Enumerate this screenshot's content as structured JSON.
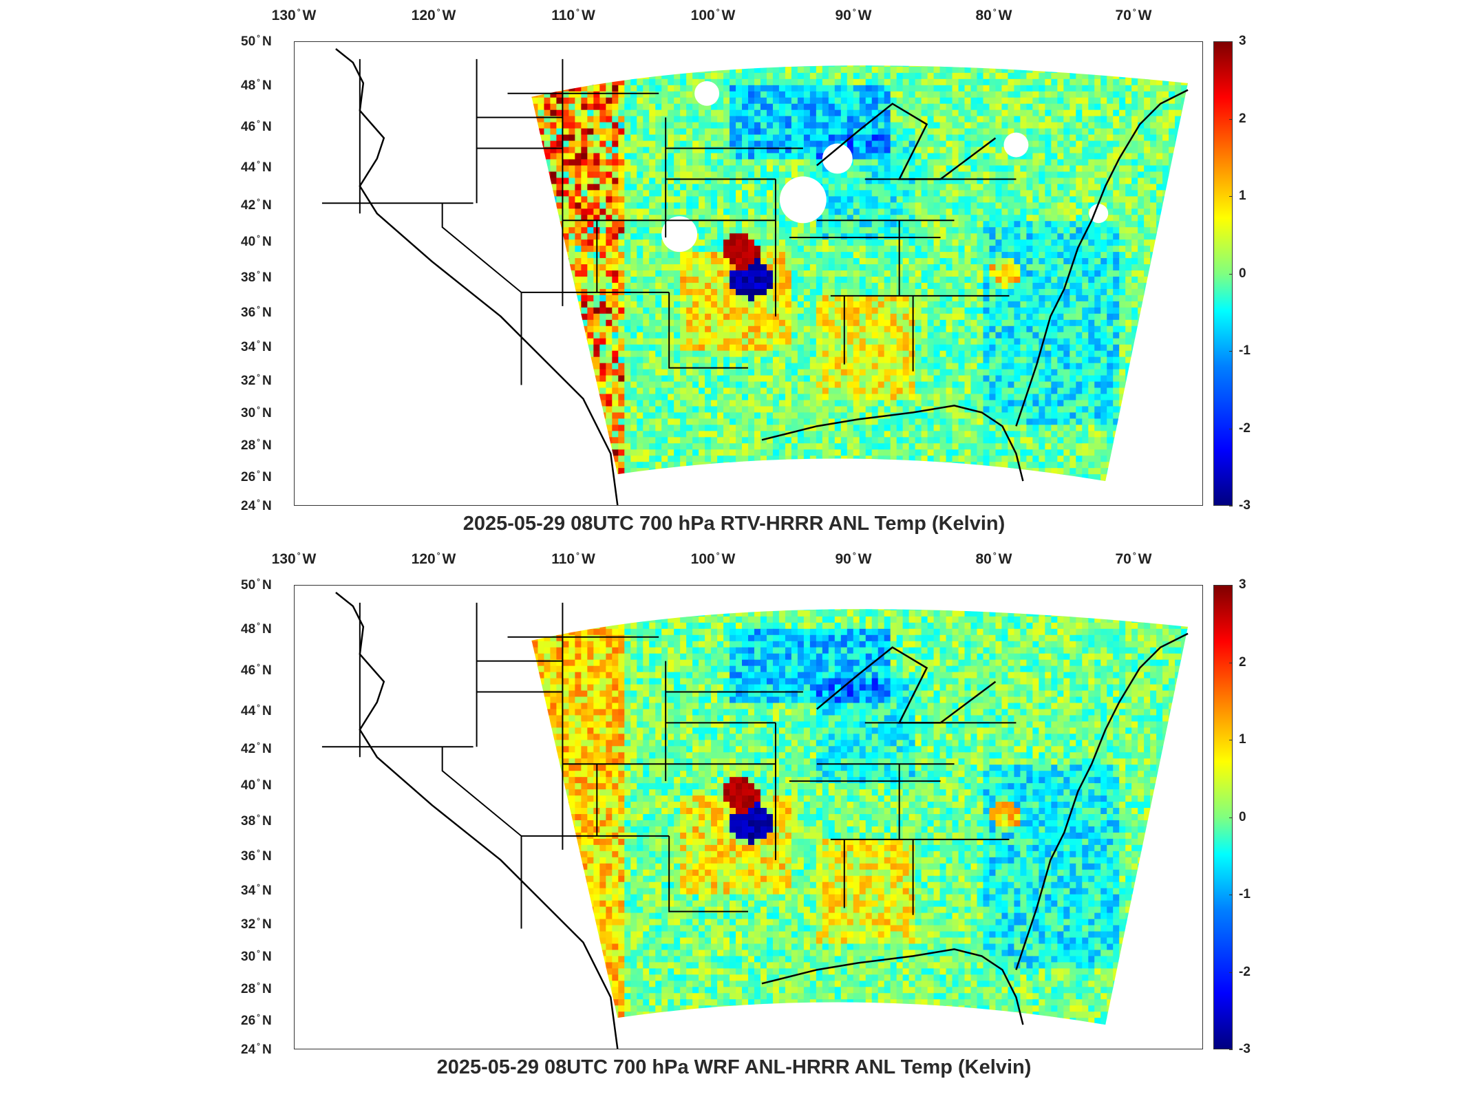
{
  "panels": [
    {
      "title": "2025-05-29 08UTC 700 hPa RTV-HRRR ANL Temp (Kelvin)",
      "variant": "rtv"
    },
    {
      "title": "2025-05-29 08UTC 700 hPa WRF ANL-HRRR ANL Temp (Kelvin)",
      "variant": "wrf"
    }
  ],
  "lon_labels": [
    "130",
    "120",
    "110",
    "100",
    "90",
    "80",
    "70"
  ],
  "lon_dir": "W",
  "lat_labels": [
    "50",
    "48",
    "46",
    "44",
    "42",
    "40",
    "38",
    "36",
    "34",
    "32",
    "30",
    "28",
    "26",
    "24"
  ],
  "lat_dir": "N",
  "colorbar": {
    "ticks": [
      "3",
      "2",
      "1",
      "0",
      "-1",
      "-2",
      "-3"
    ],
    "min": -3,
    "max": 3,
    "colormap": "jet"
  },
  "colors": {
    "outline": "#000000",
    "frame": "#333333"
  }
}
